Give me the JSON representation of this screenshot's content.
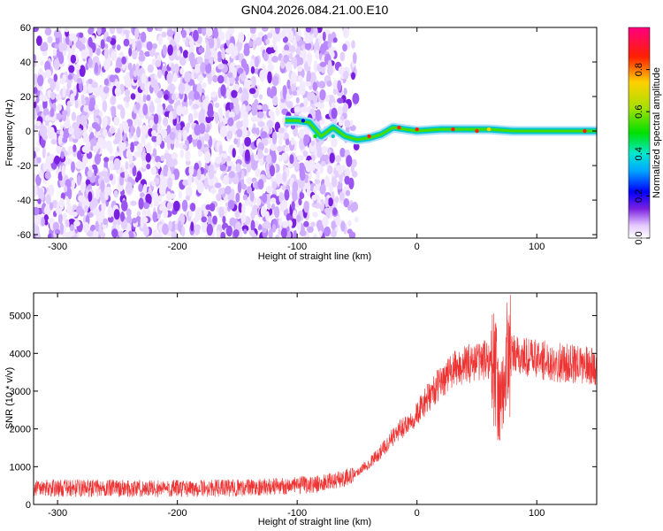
{
  "title": "GN04.2026.084.21.00.E10",
  "colors": {
    "snr_line": "#ee3333",
    "frame": "#000000"
  },
  "chart_data": [
    {
      "type": "heatmap",
      "name": "spectrogram",
      "title": "GN04.2026.084.21.00.E10",
      "xlabel": "Height of straight line (km)",
      "ylabel": "Frequency (Hz)",
      "xlim": [
        -320,
        150
      ],
      "ylim": [
        -62,
        60
      ],
      "xticks": [
        -300,
        -200,
        -100,
        0,
        100
      ],
      "yticks": [
        -60,
        -40,
        -20,
        0,
        20,
        40,
        60
      ],
      "signal_track": {
        "x": [
          -110,
          -100,
          -90,
          -80,
          -70,
          -60,
          -50,
          -40,
          -30,
          -20,
          -10,
          0,
          20,
          40,
          60,
          80,
          100,
          150
        ],
        "y": [
          6,
          6,
          5,
          -3,
          2,
          -3,
          -5,
          -4,
          -2,
          2,
          1,
          0,
          1,
          1,
          1,
          0,
          0,
          0
        ]
      },
      "colorbar": {
        "label": "Normalized spectral amplitude",
        "range": [
          0,
          1
        ],
        "ticks": [
          0.0,
          0.2,
          0.4,
          0.6,
          0.8
        ],
        "tick_labels": [
          "0.0",
          "0.2",
          "0.4",
          "0.6",
          "0.8"
        ]
      }
    },
    {
      "type": "line",
      "name": "snr",
      "xlabel": "Height of straight line (km)",
      "ylabel": "SNR (10 * v/v)",
      "xlim": [
        -320,
        150
      ],
      "ylim": [
        0,
        5600
      ],
      "xticks": [
        -300,
        -200,
        -100,
        0,
        100
      ],
      "yticks": [
        0,
        1000,
        2000,
        3000,
        4000,
        5000
      ],
      "series": [
        {
          "x": [
            -320,
            -300,
            -250,
            -200,
            -150,
            -100,
            -80,
            -60,
            -50,
            -40,
            -30,
            -20,
            -10,
            0,
            10,
            20,
            30,
            40,
            50,
            60,
            65,
            70,
            75,
            80,
            90,
            100,
            120,
            150
          ],
          "values": [
            450,
            430,
            430,
            420,
            440,
            500,
            550,
            700,
            850,
            1100,
            1400,
            1800,
            2100,
            2400,
            2850,
            3250,
            3550,
            3700,
            3800,
            3850,
            3600,
            2500,
            3800,
            3950,
            3900,
            3850,
            3750,
            3650
          ]
        }
      ]
    }
  ]
}
